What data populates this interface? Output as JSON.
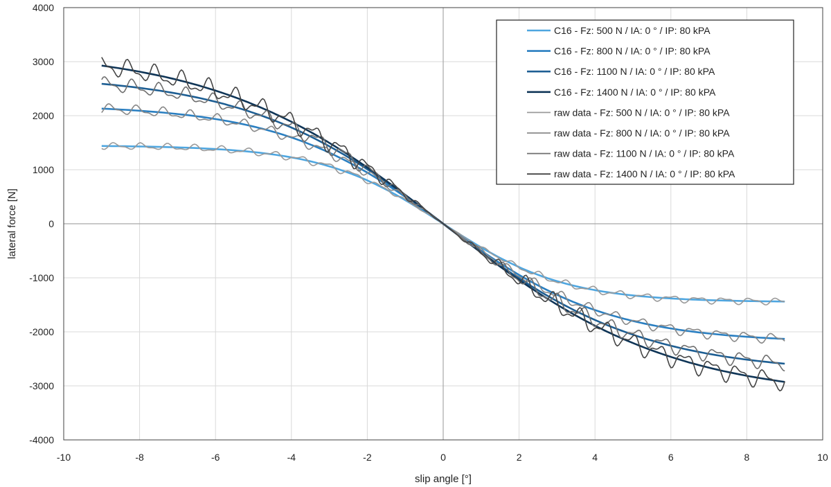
{
  "chart_data": {
    "type": "line",
    "title": "",
    "xlabel": "slip angle [°]",
    "ylabel": "lateral force [N]",
    "xlim": [
      -10,
      10
    ],
    "ylim": [
      -4000,
      4000
    ],
    "x_ticks": [
      "-10",
      "-8",
      "-6",
      "-4",
      "-2",
      "0",
      "2",
      "4",
      "6",
      "8",
      "10"
    ],
    "y_ticks": [
      "4000",
      "3000",
      "2000",
      "1000",
      "0",
      "-1000",
      "-2000",
      "-3000",
      "-4000"
    ],
    "grid": true,
    "legend_position": "top-right",
    "x_range": [
      -9,
      9
    ],
    "series": [
      {
        "name": "C16 - Fz: 500 N / IA: 0 ° / IP: 80 kPA",
        "kind": "fit",
        "color": "#4ea6e0",
        "peak": 1450,
        "stiffness": 1.0,
        "asym": 1.0
      },
      {
        "name": "C16 - Fz: 800 N / IA: 0 ° / IP: 80 kPA",
        "kind": "fit",
        "color": "#2a7fc1",
        "peak": 2200,
        "stiffness": 0.92,
        "asym": 1.0
      },
      {
        "name": "C16 - Fz: 1100 N / IA: 0 ° / IP: 80 kPA",
        "kind": "fit",
        "color": "#1d5e93",
        "peak": 2760,
        "stiffness": 0.88,
        "asym": 1.0
      },
      {
        "name": "C16 - Fz: 1400 N / IA: 0 ° / IP: 80 kPA",
        "kind": "fit",
        "color": "#0f3557",
        "peak": 3230,
        "stiffness": 0.85,
        "asym": 1.0
      },
      {
        "name": "raw data - Fz: 500 N / IA: 0 ° / IP: 80 kPA",
        "kind": "raw",
        "color": "#9a9a9a",
        "peak": 1450,
        "stiffness": 1.0,
        "asym": 1.0,
        "noise": 60
      },
      {
        "name": "raw data - Fz: 800 N / IA: 0 ° / IP: 80 kPA",
        "kind": "raw",
        "color": "#888888",
        "peak": 2200,
        "stiffness": 0.92,
        "asym": 1.0,
        "noise": 90
      },
      {
        "name": "raw data - Fz: 1100 N / IA: 0 ° / IP: 80 kPA",
        "kind": "raw",
        "color": "#6f6f6f",
        "peak": 2760,
        "stiffness": 0.88,
        "asym": 1.0,
        "noise": 130
      },
      {
        "name": "raw data - Fz: 1400 N / IA: 0 ° / IP: 80 kPA",
        "kind": "raw",
        "color": "#444444",
        "peak": 3230,
        "stiffness": 0.85,
        "asym": 1.0,
        "noise": 170
      }
    ]
  }
}
